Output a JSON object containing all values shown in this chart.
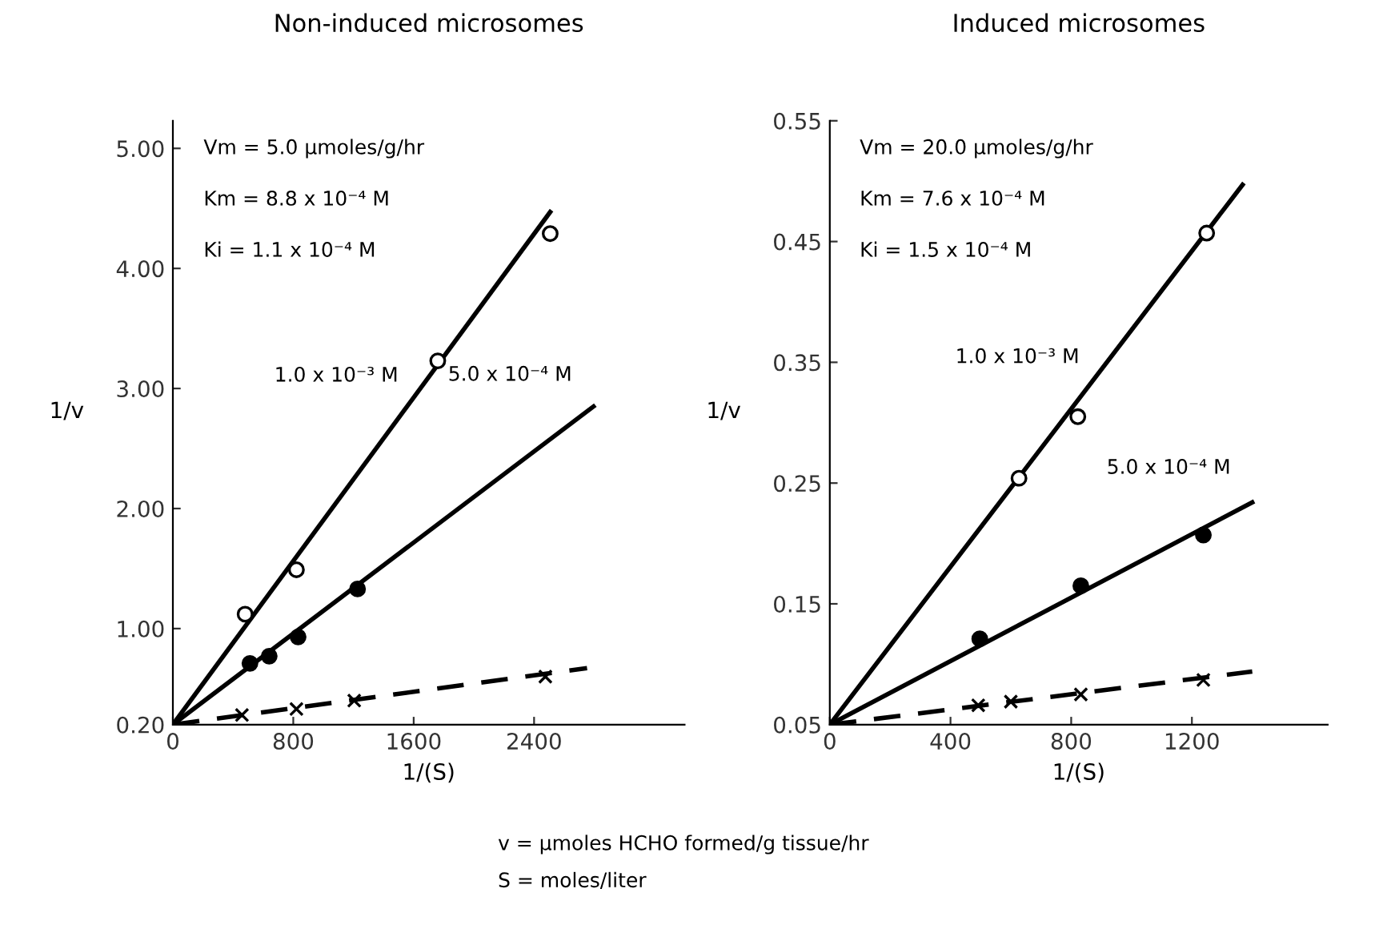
{
  "chart_data": [
    {
      "type": "scatter",
      "title": "Non-induced microsomes",
      "xlabel": "1/(S)",
      "ylabel": "1/v",
      "xlim": [
        0,
        3400
      ],
      "ylim": [
        0.2,
        5.23
      ],
      "xticks": [
        0,
        800,
        1600,
        2400
      ],
      "yticks": [
        {
          "value": 0.2,
          "label": "0.20"
        },
        {
          "value": 1,
          "label": "1.00"
        },
        {
          "value": 2,
          "label": "2.00"
        },
        {
          "value": 3,
          "label": "3.00"
        },
        {
          "value": 4,
          "label": "4.00"
        },
        {
          "value": 5,
          "label": "5.00"
        }
      ],
      "grid": false,
      "legend": false,
      "series": [
        {
          "marker": "circle",
          "color": "#ffffff",
          "x": [
            480,
            821,
            1760,
            2507
          ],
          "values": [
            1.12,
            1.49,
            3.23,
            4.29
          ]
        },
        {
          "marker": "circle",
          "color": "#000000",
          "x": [
            512,
            640,
            832,
            1227
          ],
          "values": [
            0.71,
            0.77,
            0.93,
            1.33
          ]
        },
        {
          "marker": "cross",
          "color": "#000000",
          "x": [
            459,
            821,
            1205,
            2475
          ],
          "values": [
            0.28,
            0.33,
            0.4,
            0.6
          ]
        },
        {
          "type": "line",
          "marker": "none",
          "line_style": "solid",
          "color": "#000000",
          "x": [
            0,
            2507
          ],
          "values": [
            0.2,
            4.47
          ]
        },
        {
          "type": "line",
          "marker": "none",
          "line_style": "solid",
          "color": "#000000",
          "x": [
            0,
            2795
          ],
          "values": [
            0.2,
            2.85
          ]
        },
        {
          "type": "line",
          "marker": "none",
          "line_style": "dashed",
          "color": "#000000",
          "x": [
            0,
            2752
          ],
          "values": [
            0.2,
            0.67
          ]
        }
      ],
      "annotations": [
        "Vm = 5.0 µmoles/g/hr",
        "Km = 8.8 x 10⁻⁴ M",
        "Ki = 1.1 x 10⁻⁴ M",
        "1.0 x 10⁻³ M",
        "5.0 x 10⁻⁴ M"
      ]
    },
    {
      "type": "scatter",
      "title": "Induced microsomes",
      "xlabel": "1/(S)",
      "ylabel": "1/v",
      "xlim": [
        0,
        1650
      ],
      "ylim": [
        0.05,
        0.55
      ],
      "xticks": [
        0,
        400,
        800,
        1200
      ],
      "yticks": [
        0.05,
        0.15,
        0.25,
        0.35,
        0.45,
        0.55
      ],
      "grid": false,
      "legend": false,
      "series": [
        {
          "marker": "circle",
          "color": "#ffffff",
          "x": [
            627,
            822,
            1249
          ],
          "values": [
            0.254,
            0.305,
            0.457
          ]
        },
        {
          "marker": "circle",
          "color": "#000000",
          "x": [
            497,
            832,
            1238
          ],
          "values": [
            0.121,
            0.165,
            0.207
          ]
        },
        {
          "marker": "cross",
          "color": "#000000",
          "x": [
            492,
            600,
            832,
            1238
          ],
          "values": [
            0.066,
            0.069,
            0.075,
            0.087
          ]
        },
        {
          "type": "line",
          "marker": "none",
          "line_style": "solid",
          "color": "#000000",
          "x": [
            0,
            1368
          ],
          "values": [
            0.05,
            0.497
          ]
        },
        {
          "type": "line",
          "marker": "none",
          "line_style": "solid",
          "color": "#000000",
          "x": [
            0,
            1400
          ],
          "values": [
            0.05,
            0.234
          ]
        },
        {
          "type": "line",
          "marker": "none",
          "line_style": "dashed",
          "color": "#000000",
          "x": [
            0,
            1400
          ],
          "values": [
            0.05,
            0.094
          ]
        }
      ],
      "annotations": [
        "Vm = 20.0 µmoles/g/hr",
        "Km = 7.6 x 10⁻⁴ M",
        "Ki = 1.5 x 10⁻⁴ M",
        "1.0 x 10⁻³ M",
        "5.0 x 10⁻⁴ M",
        "v = µmoles HCHO formed/g tissue/hr",
        "S = moles/liter"
      ]
    }
  ]
}
